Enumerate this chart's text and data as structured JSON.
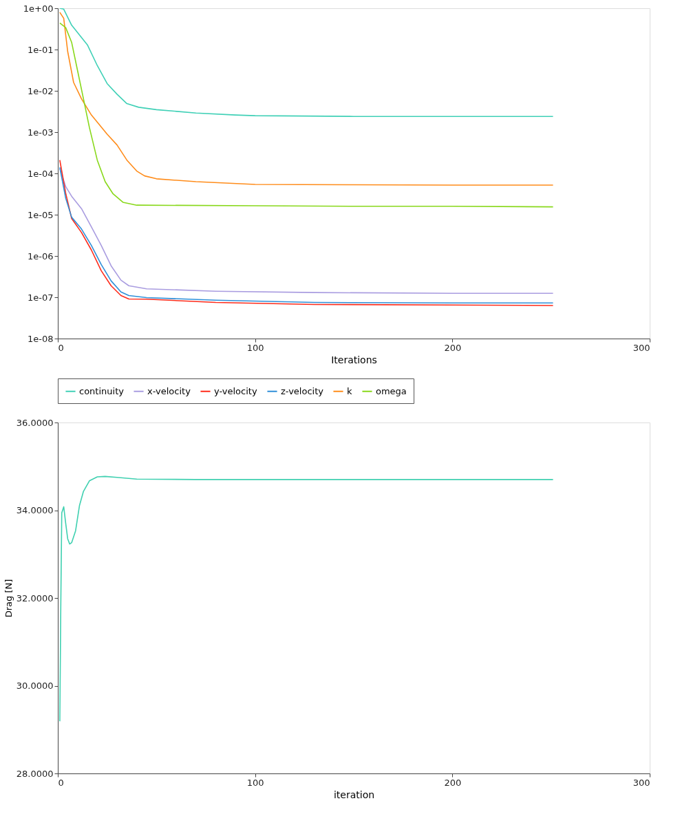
{
  "chart_data": [
    {
      "type": "line",
      "xlabel": "Iterations",
      "log": "y",
      "legend": "bottom",
      "grid": false,
      "xlim": [
        0,
        300
      ],
      "xticks": [
        0,
        100,
        200,
        300
      ],
      "ylim": [
        1e-08,
        1
      ],
      "yticks": [
        {
          "value": 1e-08,
          "label": "1e-08"
        },
        {
          "value": 1e-07,
          "label": "1e-07"
        },
        {
          "value": 1e-06,
          "label": "1e-06"
        },
        {
          "value": 1e-05,
          "label": "1e-05"
        },
        {
          "value": 0.0001,
          "label": "1e-04"
        },
        {
          "value": 0.001,
          "label": "1e-03"
        },
        {
          "value": 0.01,
          "label": "1e-02"
        },
        {
          "value": 0.1,
          "label": "1e-01"
        },
        {
          "value": 1,
          "label": "1e+00"
        }
      ],
      "series": [
        {
          "name": "continuity",
          "color": "#3fd0b6",
          "x": [
            1,
            3,
            7,
            15,
            20,
            25,
            30,
            35,
            41,
            50,
            70,
            90,
            100,
            150,
            200,
            251
          ],
          "values": [
            1,
            0.95,
            0.39,
            0.13,
            0.041,
            0.015,
            0.0083,
            0.0049,
            0.004,
            0.0035,
            0.0029,
            0.0026,
            0.0025,
            0.0024,
            0.0024,
            0.0024
          ]
        },
        {
          "name": "x-velocity",
          "color": "#a99ce0",
          "x": [
            1,
            4,
            7,
            12,
            17,
            22,
            27,
            32,
            36,
            45,
            80,
            130,
            200,
            251
          ],
          "values": [
            0.00013,
            4.8e-05,
            2.8e-05,
            1.4e-05,
            5.1e-06,
            1.8e-06,
            5.8e-07,
            2.6e-07,
            1.9e-07,
            1.6e-07,
            1.4e-07,
            1.3e-07,
            1.25e-07,
            1.25e-07
          ]
        },
        {
          "name": "y-velocity",
          "color": "#ff2a1a",
          "x": [
            1,
            4,
            7,
            12,
            17,
            22,
            27,
            32,
            36,
            45,
            80,
            130,
            200,
            251
          ],
          "values": [
            0.00021,
            3.3e-05,
            8.1e-06,
            3.7e-06,
            1.4e-06,
            4.4e-07,
            1.9e-07,
            1.1e-07,
            9.1e-08,
            9e-08,
            7.5e-08,
            6.7e-08,
            6.5e-08,
            6.3e-08
          ]
        },
        {
          "name": "z-velocity",
          "color": "#2f8fd8",
          "x": [
            1,
            4,
            7,
            12,
            17,
            22,
            27,
            32,
            36,
            45,
            80,
            130,
            200,
            251
          ],
          "values": [
            0.00014,
            2.5e-05,
            8.7e-06,
            4.5e-06,
            1.8e-06,
            6.2e-07,
            2.5e-07,
            1.35e-07,
            1.1e-07,
            9.8e-08,
            8.5e-08,
            7.5e-08,
            7.3e-08,
            7.3e-08
          ]
        },
        {
          "name": "k",
          "color": "#ff8c1a",
          "x": [
            1,
            3,
            5,
            8,
            12,
            17,
            25,
            30,
            35,
            40,
            44,
            50,
            70,
            100,
            150,
            200,
            251
          ],
          "values": [
            0.8,
            0.57,
            0.09,
            0.016,
            0.0064,
            0.0026,
            0.00089,
            0.00049,
            0.00021,
            0.000114,
            8.7e-05,
            7.4e-05,
            6.3e-05,
            5.4e-05,
            5.3e-05,
            5.2e-05,
            5.2e-05
          ]
        },
        {
          "name": "omega",
          "color": "#88d81a",
          "x": [
            1,
            4,
            7,
            10,
            13,
            16,
            20,
            24,
            28,
            33,
            40,
            100,
            150,
            200,
            251
          ],
          "values": [
            0.44,
            0.34,
            0.15,
            0.031,
            0.0064,
            0.0013,
            0.00021,
            6.3e-05,
            3.2e-05,
            2e-05,
            1.7e-05,
            1.65e-05,
            1.6e-05,
            1.6e-05,
            1.55e-05
          ]
        }
      ]
    },
    {
      "type": "line",
      "xlabel": "iteration",
      "ylabel": "Drag [N]",
      "legend": false,
      "grid": false,
      "xlim": [
        0,
        300
      ],
      "xticks": [
        0,
        100,
        200,
        300
      ],
      "ylim": [
        28,
        36
      ],
      "yticks": [
        {
          "value": 28,
          "label": "28.0000"
        },
        {
          "value": 30,
          "label": "30.0000"
        },
        {
          "value": 32,
          "label": "32.0000"
        },
        {
          "value": 34,
          "label": "34.0000"
        },
        {
          "value": 36,
          "label": "36.0000"
        }
      ],
      "series": [
        {
          "color": "#3fd0b0",
          "x": [
            1,
            1.5,
            2,
            3,
            4,
            5,
            6,
            7,
            9,
            11,
            13,
            16,
            20,
            24,
            30,
            40,
            70,
            150,
            251
          ],
          "values": [
            29.19,
            31.77,
            33.94,
            34.08,
            33.7,
            33.35,
            33.23,
            33.26,
            33.53,
            34.11,
            34.43,
            34.67,
            34.76,
            34.77,
            34.75,
            34.71,
            34.7,
            34.7,
            34.7
          ]
        }
      ]
    }
  ]
}
